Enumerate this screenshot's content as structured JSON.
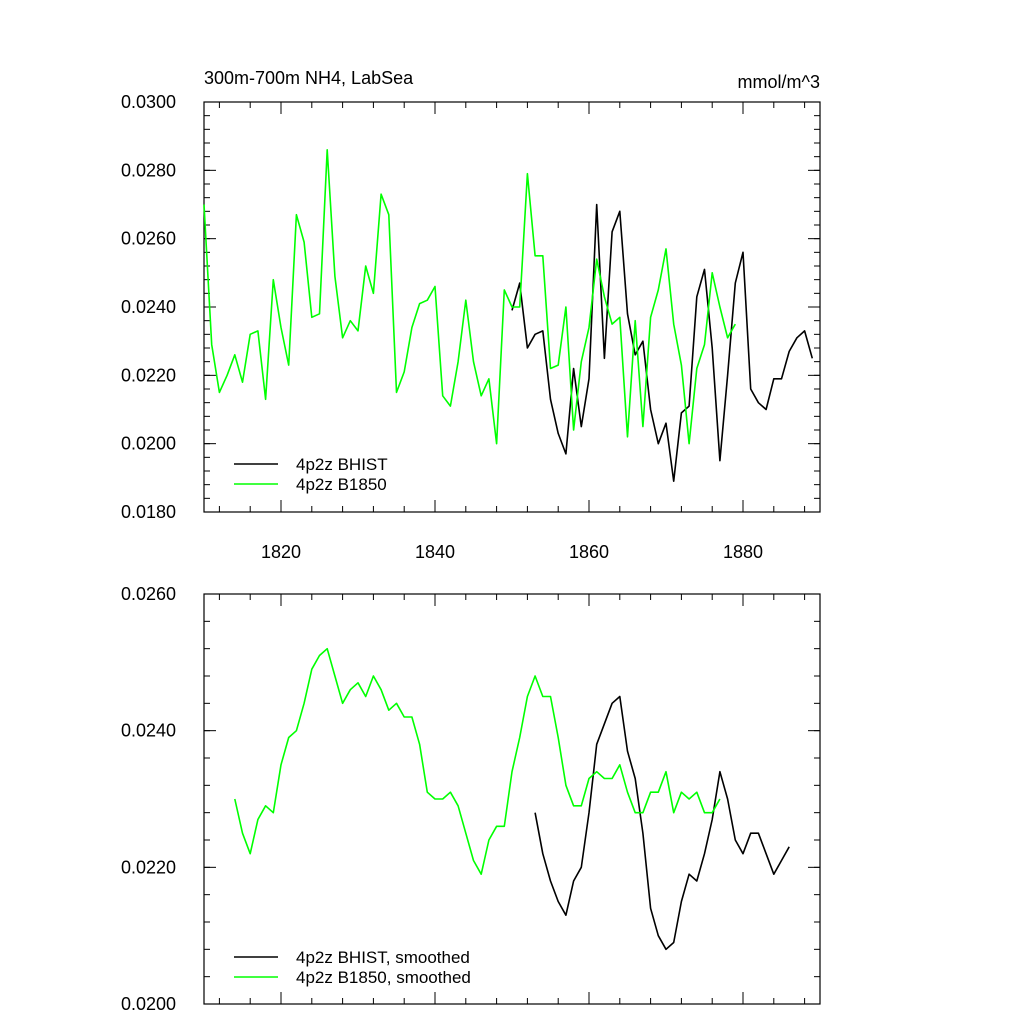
{
  "chart_data": [
    {
      "type": "line",
      "title": "300m-700m NH4, LabSea",
      "units": "mmol/m^3",
      "xlim": [
        1810,
        1890
      ],
      "ylim": [
        0.018,
        0.03
      ],
      "ytick_labels": [
        "0.0180",
        "0.0200",
        "0.0220",
        "0.0240",
        "0.0260",
        "0.0280",
        "0.0300"
      ],
      "xtick_labels": [
        "1820",
        "1840",
        "1860",
        "1880"
      ],
      "legend": "bottom-left",
      "series": [
        {
          "name": "4p2z BHIST",
          "color": "#000000",
          "x": [
            1850,
            1851,
            1852,
            1853,
            1854,
            1855,
            1856,
            1857,
            1858,
            1859,
            1860,
            1861,
            1862,
            1863,
            1864,
            1865,
            1866,
            1867,
            1868,
            1869,
            1870,
            1871,
            1872,
            1873,
            1874,
            1875,
            1876,
            1877,
            1878,
            1879,
            1880,
            1881,
            1882,
            1883,
            1884,
            1885,
            1886,
            1887,
            1888,
            1889
          ],
          "y": [
            0.0239,
            0.0247,
            0.0228,
            0.0232,
            0.0233,
            0.0213,
            0.0203,
            0.0197,
            0.0222,
            0.0205,
            0.0219,
            0.027,
            0.0225,
            0.0262,
            0.0268,
            0.0238,
            0.0226,
            0.023,
            0.021,
            0.02,
            0.0206,
            0.0189,
            0.0209,
            0.0211,
            0.0243,
            0.0251,
            0.0228,
            0.0195,
            0.022,
            0.0247,
            0.0256,
            0.0216,
            0.0212,
            0.021,
            0.0219,
            0.0219,
            0.0227,
            0.0231,
            0.0233,
            0.0225
          ]
        },
        {
          "name": "4p2z B1850",
          "color": "#00ff00",
          "x": [
            1810,
            1811,
            1812,
            1813,
            1814,
            1815,
            1816,
            1817,
            1818,
            1819,
            1820,
            1821,
            1822,
            1823,
            1824,
            1825,
            1826,
            1827,
            1828,
            1829,
            1830,
            1831,
            1832,
            1833,
            1834,
            1835,
            1836,
            1837,
            1838,
            1839,
            1840,
            1841,
            1842,
            1843,
            1844,
            1845,
            1846,
            1847,
            1848,
            1849,
            1850,
            1851,
            1852,
            1853,
            1854,
            1855,
            1856,
            1857,
            1858,
            1859,
            1860,
            1861,
            1862,
            1863,
            1864,
            1865,
            1866,
            1867,
            1868,
            1869,
            1870,
            1871,
            1872,
            1873,
            1874,
            1875,
            1876,
            1877,
            1878,
            1879
          ],
          "y": [
            0.027,
            0.0229,
            0.0215,
            0.022,
            0.0226,
            0.0218,
            0.0232,
            0.0233,
            0.0213,
            0.0248,
            0.0234,
            0.0223,
            0.0267,
            0.0259,
            0.0237,
            0.0238,
            0.0286,
            0.0249,
            0.0231,
            0.0236,
            0.0233,
            0.0252,
            0.0244,
            0.0273,
            0.0267,
            0.0215,
            0.0221,
            0.0234,
            0.0241,
            0.0242,
            0.0246,
            0.0214,
            0.0211,
            0.0224,
            0.0242,
            0.0224,
            0.0214,
            0.0219,
            0.02,
            0.0245,
            0.024,
            0.024,
            0.0279,
            0.0255,
            0.0255,
            0.0222,
            0.0223,
            0.024,
            0.0204,
            0.0224,
            0.0234,
            0.0254,
            0.0243,
            0.0235,
            0.0237,
            0.0202,
            0.0236,
            0.0205,
            0.0237,
            0.0245,
            0.0257,
            0.0235,
            0.0223,
            0.02,
            0.0222,
            0.0229,
            0.025,
            0.024,
            0.0231,
            0.0235
          ]
        }
      ]
    },
    {
      "type": "line",
      "xlim": [
        1810,
        1890
      ],
      "ylim": [
        0.02,
        0.026
      ],
      "ytick_labels": [
        "0.0200",
        "0.0220",
        "0.0240",
        "0.0260"
      ],
      "legend": "bottom-left",
      "series": [
        {
          "name": "4p2z BHIST, smoothed",
          "color": "#000000",
          "x": [
            1853,
            1854,
            1855,
            1856,
            1857,
            1858,
            1859,
            1860,
            1861,
            1862,
            1863,
            1864,
            1865,
            1866,
            1867,
            1868,
            1869,
            1870,
            1871,
            1872,
            1873,
            1874,
            1875,
            1876,
            1877,
            1878,
            1879,
            1880,
            1881,
            1882,
            1883,
            1884,
            1885,
            1886
          ],
          "y": [
            0.0228,
            0.0222,
            0.0218,
            0.0215,
            0.0213,
            0.0218,
            0.022,
            0.0228,
            0.0238,
            0.0241,
            0.0244,
            0.0245,
            0.0237,
            0.0233,
            0.0225,
            0.0214,
            0.021,
            0.0208,
            0.0209,
            0.0215,
            0.0219,
            0.0218,
            0.0222,
            0.0227,
            0.0234,
            0.023,
            0.0224,
            0.0222,
            0.0225,
            0.0225,
            0.0222,
            0.0219,
            0.0221,
            0.0223
          ]
        },
        {
          "name": "4p2z B1850, smoothed",
          "color": "#00ff00",
          "x": [
            1814,
            1815,
            1816,
            1817,
            1818,
            1819,
            1820,
            1821,
            1822,
            1823,
            1824,
            1825,
            1826,
            1827,
            1828,
            1829,
            1830,
            1831,
            1832,
            1833,
            1834,
            1835,
            1836,
            1837,
            1838,
            1839,
            1840,
            1841,
            1842,
            1843,
            1844,
            1845,
            1846,
            1847,
            1848,
            1849,
            1850,
            1851,
            1852,
            1853,
            1854,
            1855,
            1856,
            1857,
            1858,
            1859,
            1860,
            1861,
            1862,
            1863,
            1864,
            1865,
            1866,
            1867,
            1868,
            1869,
            1870,
            1871,
            1872,
            1873,
            1874,
            1875,
            1876,
            1877
          ],
          "y": [
            0.023,
            0.0225,
            0.0222,
            0.0227,
            0.0229,
            0.0228,
            0.0235,
            0.0239,
            0.024,
            0.0244,
            0.0249,
            0.0251,
            0.0252,
            0.0248,
            0.0244,
            0.0246,
            0.0247,
            0.0245,
            0.0248,
            0.0246,
            0.0243,
            0.0244,
            0.0242,
            0.0242,
            0.0238,
            0.0231,
            0.023,
            0.023,
            0.0231,
            0.0229,
            0.0225,
            0.0221,
            0.0219,
            0.0224,
            0.0226,
            0.0226,
            0.0234,
            0.0239,
            0.0245,
            0.0248,
            0.0245,
            0.0245,
            0.0239,
            0.0232,
            0.0229,
            0.0229,
            0.0233,
            0.0234,
            0.0233,
            0.0233,
            0.0235,
            0.0231,
            0.0228,
            0.0228,
            0.0231,
            0.0231,
            0.0234,
            0.0228,
            0.0231,
            0.023,
            0.0231,
            0.0228,
            0.0228,
            0.023
          ]
        }
      ]
    }
  ]
}
